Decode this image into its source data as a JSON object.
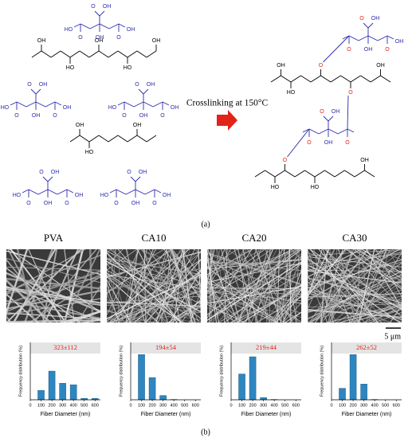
{
  "panel_a": {
    "label": "(a)",
    "arrow_text": "Crosslinking at 150°C",
    "reactants": [
      {
        "labels": [
          "O",
          "OH",
          "HO",
          "O",
          "O",
          "OH",
          "OH"
        ]
      },
      {
        "labels": [
          "OH",
          "HO",
          "OH",
          "HO",
          "OH"
        ]
      },
      {
        "labels": [
          "O",
          "OH",
          "HO",
          "O",
          "O",
          "OH",
          "OH"
        ]
      },
      {
        "labels": [
          "O",
          "OH",
          "HO",
          "O",
          "O",
          "OH",
          "OH"
        ]
      },
      {
        "labels": [
          "OH",
          "HO",
          "OH"
        ]
      },
      {
        "labels": [
          "O",
          "OH",
          "HO",
          "O",
          "O",
          "OH",
          "OH"
        ]
      },
      {
        "labels": [
          "O",
          "OH",
          "HO",
          "O",
          "O",
          "OH",
          "OH"
        ]
      }
    ],
    "product": [
      {
        "labels": [
          "OH",
          "HO",
          "O",
          "O",
          "OH"
        ]
      },
      {
        "labels": [
          "O",
          "OH",
          "O",
          "O",
          "OH",
          "OH"
        ]
      },
      {
        "labels": [
          "O",
          "OH",
          "O",
          "O",
          "OH"
        ]
      },
      {
        "labels": [
          "HO",
          "O",
          "HO",
          "OH"
        ]
      }
    ]
  },
  "panel_b": {
    "label": "(b)",
    "images": [
      "PVA",
      "CA10",
      "CA20",
      "CA30"
    ],
    "scale_bar": "5 μm"
  },
  "chart_data": [
    {
      "type": "bar",
      "annotation": "323±112",
      "x": [
        100,
        200,
        300,
        400,
        500,
        600
      ],
      "values": [
        13,
        40,
        23,
        21,
        2,
        2
      ],
      "color": "#2e86c1",
      "xlim": [
        0,
        650
      ],
      "xticks": [
        0,
        100,
        200,
        300,
        400,
        500,
        600
      ],
      "ylim": [
        0,
        80
      ],
      "x_label": "Fiber Diameter (nm)",
      "y_label": "Frequency distribution (%)"
    },
    {
      "type": "bar",
      "annotation": "194±54",
      "x": [
        100,
        200,
        300,
        400,
        500,
        600
      ],
      "values": [
        63,
        31,
        6,
        0.5,
        0,
        0
      ],
      "color": "#2e86c1",
      "xlim": [
        0,
        650
      ],
      "xticks": [
        0,
        100,
        200,
        300,
        400,
        500,
        600
      ],
      "ylim": [
        0,
        80
      ],
      "x_label": "Fiber Diameter (nm)",
      "y_label": "Frequency distribution (%)"
    },
    {
      "type": "bar",
      "annotation": "219±44",
      "x": [
        100,
        200,
        300,
        400,
        500,
        600
      ],
      "values": [
        36,
        60,
        3,
        0.5,
        0,
        0
      ],
      "color": "#2e86c1",
      "xlim": [
        0,
        650
      ],
      "xticks": [
        0,
        100,
        200,
        300,
        400,
        500,
        600
      ],
      "ylim": [
        0,
        80
      ],
      "x_label": "Fiber Diameter (nm)",
      "y_label": "Frequency distribution (%)"
    },
    {
      "type": "bar",
      "annotation": "262±52",
      "x": [
        100,
        200,
        300,
        400,
        500,
        600
      ],
      "values": [
        16,
        63,
        22,
        0.5,
        0,
        0
      ],
      "color": "#2e86c1",
      "xlim": [
        0,
        650
      ],
      "xticks": [
        0,
        100,
        200,
        300,
        400,
        500,
        600
      ],
      "ylim": [
        0,
        80
      ],
      "x_label": "Fiber Diameter (nm)",
      "y_label": "Frequency distribution (%)"
    }
  ]
}
